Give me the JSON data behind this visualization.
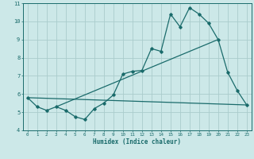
{
  "xlabel": "Humidex (Indice chaleur)",
  "xlim": [
    -0.5,
    23.5
  ],
  "ylim": [
    4,
    11
  ],
  "yticks": [
    4,
    5,
    6,
    7,
    8,
    9,
    10,
    11
  ],
  "xticks": [
    0,
    1,
    2,
    3,
    4,
    5,
    6,
    7,
    8,
    9,
    10,
    11,
    12,
    13,
    14,
    15,
    16,
    17,
    18,
    19,
    20,
    21,
    22,
    23
  ],
  "bg_color": "#cce8e8",
  "grid_color": "#aacccc",
  "line_color": "#1a6b6b",
  "line1_x": [
    0,
    1,
    2,
    3,
    4,
    5,
    6,
    7,
    8,
    9,
    10,
    11,
    12,
    13,
    14,
    15,
    16,
    17,
    18,
    19,
    20,
    21,
    22,
    23
  ],
  "line1_y": [
    5.8,
    5.3,
    5.1,
    5.3,
    5.1,
    4.75,
    4.6,
    5.2,
    5.5,
    5.95,
    7.1,
    7.25,
    7.3,
    8.5,
    8.35,
    10.4,
    9.7,
    10.75,
    10.4,
    9.9,
    9.0,
    7.2,
    6.2,
    5.4
  ],
  "line2_x": [
    0,
    23
  ],
  "line2_y": [
    5.8,
    5.4
  ],
  "line3_x": [
    3,
    20
  ],
  "line3_y": [
    5.3,
    9.0
  ]
}
